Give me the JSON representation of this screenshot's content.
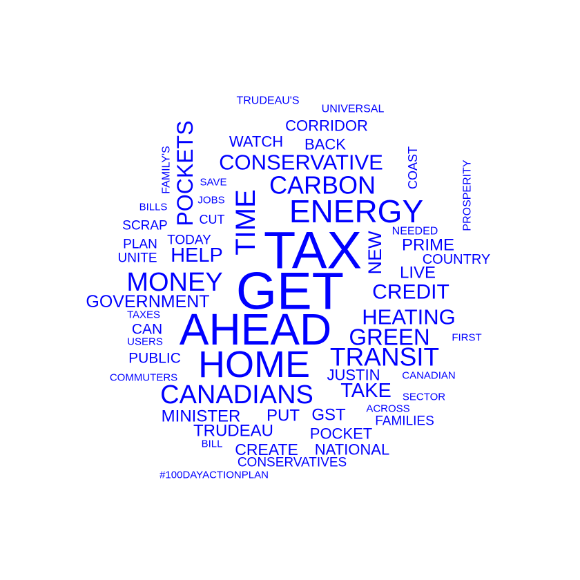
{
  "color": "#0000ff",
  "words": [
    {
      "text": "TAX",
      "weight": 100
    },
    {
      "text": "GET",
      "weight": 100
    },
    {
      "text": "AHEAD",
      "weight": 90
    },
    {
      "text": "HOME",
      "weight": 78
    },
    {
      "text": "ENERGY",
      "weight": 68
    },
    {
      "text": "CANADIANS",
      "weight": 62
    },
    {
      "text": "TIME",
      "weight": 60
    },
    {
      "text": "TRANSIT",
      "weight": 58
    },
    {
      "text": "MONEY",
      "weight": 58
    },
    {
      "text": "POCKETS",
      "weight": 54
    },
    {
      "text": "CARBON",
      "weight": 54
    },
    {
      "text": "CONSERVATIVE",
      "weight": 50
    },
    {
      "text": "GREEN",
      "weight": 50
    },
    {
      "text": "CREDIT",
      "weight": 46
    },
    {
      "text": "HEATING",
      "weight": 46
    },
    {
      "text": "HELP",
      "weight": 44
    },
    {
      "text": "TAKE",
      "weight": 42
    },
    {
      "text": "NEW",
      "weight": 40
    },
    {
      "text": "GOVERNMENT",
      "weight": 38
    },
    {
      "text": "MINISTER",
      "weight": 38
    },
    {
      "text": "LIVE",
      "weight": 36
    },
    {
      "text": "PRIME",
      "weight": 36
    },
    {
      "text": "TRUDEAU",
      "weight": 36
    },
    {
      "text": "PUT",
      "weight": 36
    },
    {
      "text": "GST",
      "weight": 36
    },
    {
      "text": "CREATE",
      "weight": 34
    },
    {
      "text": "CORRIDOR",
      "weight": 34
    },
    {
      "text": "BACK",
      "weight": 34
    },
    {
      "text": "WATCH",
      "weight": 32
    },
    {
      "text": "JUSTIN",
      "weight": 32
    },
    {
      "text": "POCKET",
      "weight": 32
    },
    {
      "text": "NATIONAL",
      "weight": 32
    },
    {
      "text": "PUBLIC",
      "weight": 30
    },
    {
      "text": "CAN",
      "weight": 30
    },
    {
      "text": "COUNTRY",
      "weight": 30
    },
    {
      "text": "FAMILIES",
      "weight": 28
    },
    {
      "text": "TODAY",
      "weight": 28
    },
    {
      "text": "PLAN",
      "weight": 28
    },
    {
      "text": "SCRAP",
      "weight": 28
    },
    {
      "text": "UNITE",
      "weight": 28
    },
    {
      "text": "CONSERVATIVES",
      "weight": 28
    },
    {
      "text": "COAST",
      "weight": 26
    },
    {
      "text": "CUT",
      "weight": 26
    },
    {
      "text": "PROSPERITY",
      "weight": 24
    },
    {
      "text": "UNIVERSAL",
      "weight": 24
    },
    {
      "text": "TRUDEAU'S",
      "weight": 24
    },
    {
      "text": "NEEDED",
      "weight": 24
    },
    {
      "text": "FAMILY'S",
      "weight": 24
    },
    {
      "text": "SAVE",
      "weight": 22
    },
    {
      "text": "JOBS",
      "weight": 22
    },
    {
      "text": "BILLS",
      "weight": 22
    },
    {
      "text": "TAXES",
      "weight": 22
    },
    {
      "text": "USERS",
      "weight": 22
    },
    {
      "text": "COMMUTERS",
      "weight": 22
    },
    {
      "text": "CANADIAN",
      "weight": 22
    },
    {
      "text": "SECTOR",
      "weight": 22
    },
    {
      "text": "ACROSS",
      "weight": 22
    },
    {
      "text": "FIRST",
      "weight": 22
    },
    {
      "text": "BILL",
      "weight": 22
    },
    {
      "text": "#100DAYACTIONPLAN",
      "weight": 22
    }
  ]
}
